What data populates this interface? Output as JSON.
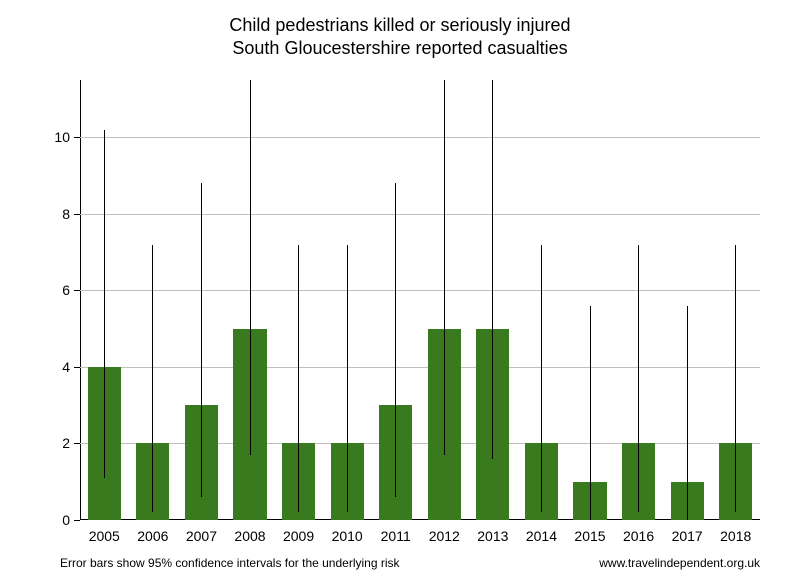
{
  "chart": {
    "type": "bar",
    "title_line1": "Child pedestrians killed or seriously injured",
    "title_line2": "South Gloucestershire reported casualties",
    "title_fontsize": 18,
    "categories": [
      "2005",
      "2006",
      "2007",
      "2008",
      "2009",
      "2010",
      "2011",
      "2012",
      "2013",
      "2014",
      "2015",
      "2016",
      "2017",
      "2018"
    ],
    "values": [
      4,
      2,
      3,
      5,
      2,
      2,
      3,
      5,
      5,
      2,
      1,
      2,
      1,
      2
    ],
    "err_low": [
      1.1,
      0.2,
      0.6,
      1.7,
      0.2,
      0.2,
      0.6,
      1.7,
      1.6,
      0.2,
      0.0,
      0.2,
      0.0,
      0.2
    ],
    "err_high": [
      10.2,
      7.2,
      8.8,
      11.7,
      7.2,
      7.2,
      8.8,
      11.7,
      11.7,
      7.2,
      5.6,
      7.2,
      5.6,
      7.2
    ],
    "bar_color": "#3a7a1e",
    "grid_color": "#c0c0c0",
    "axis_color": "#000000",
    "errorbar_color": "#000000",
    "background_color": "#ffffff",
    "ylim_min": 0,
    "ylim_max": 11.5,
    "yticks": [
      0,
      2,
      4,
      6,
      8,
      10
    ],
    "tick_fontsize": 14,
    "bar_width": 0.68,
    "footer_left": "Error bars show 95% confidence intervals for the underlying risk",
    "footer_right": "www.travelindependent.org.uk",
    "footer_fontsize": 12
  }
}
